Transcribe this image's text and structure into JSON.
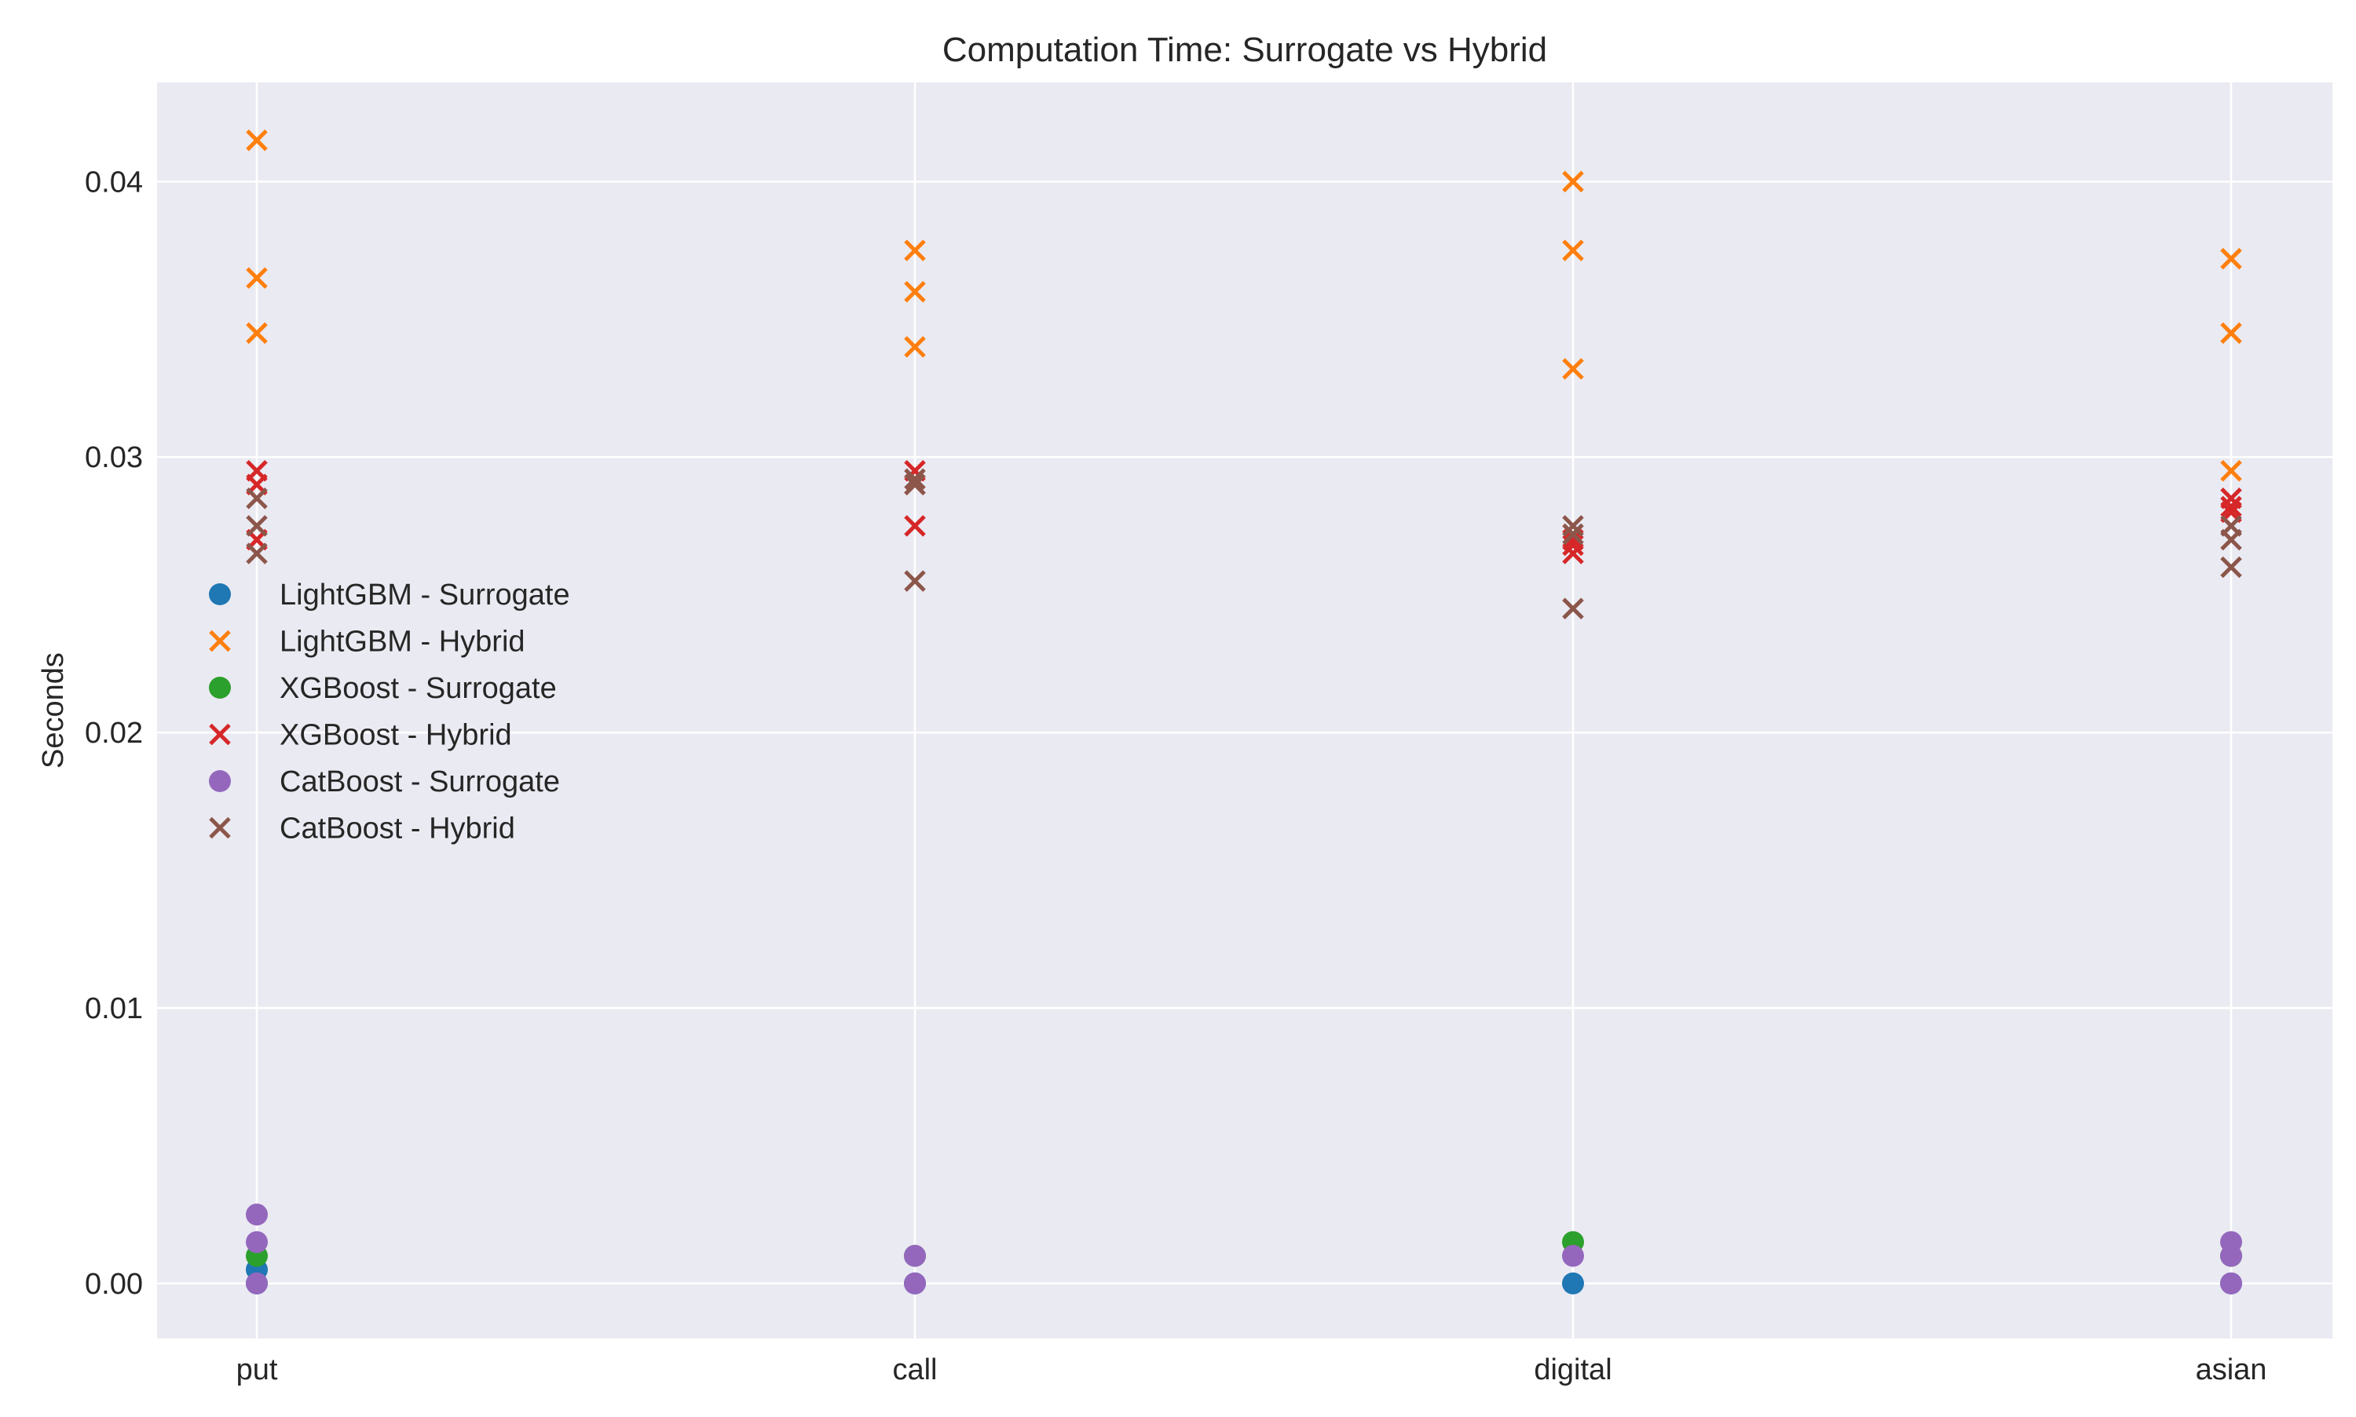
{
  "chart_data": {
    "type": "scatter",
    "title": "Computation Time: Surrogate vs Hybrid",
    "xlabel": "",
    "ylabel": "Seconds",
    "categories": [
      "put",
      "call",
      "digital",
      "asian"
    ],
    "ylim": [
      -0.002,
      0.0436
    ],
    "yticks": [
      "0.00",
      "0.01",
      "0.02",
      "0.03",
      "0.04"
    ],
    "grid": true,
    "legend_position": "center-left",
    "series": [
      {
        "name": "LightGBM - Surrogate",
        "marker": "circle",
        "color": "#1f77b4",
        "points": [
          {
            "x": "put",
            "y": 0.0005
          },
          {
            "x": "put",
            "y": 0.0
          },
          {
            "x": "call",
            "y": 0.0
          },
          {
            "x": "digital",
            "y": 0.0
          },
          {
            "x": "asian",
            "y": 0.0
          }
        ]
      },
      {
        "name": "LightGBM - Hybrid",
        "marker": "x",
        "color": "#ff7f0e",
        "points": [
          {
            "x": "put",
            "y": 0.0415
          },
          {
            "x": "put",
            "y": 0.0365
          },
          {
            "x": "put",
            "y": 0.0345
          },
          {
            "x": "call",
            "y": 0.0375
          },
          {
            "x": "call",
            "y": 0.036
          },
          {
            "x": "call",
            "y": 0.034
          },
          {
            "x": "digital",
            "y": 0.04
          },
          {
            "x": "digital",
            "y": 0.0375
          },
          {
            "x": "digital",
            "y": 0.0332
          },
          {
            "x": "asian",
            "y": 0.0372
          },
          {
            "x": "asian",
            "y": 0.0345
          },
          {
            "x": "asian",
            "y": 0.0295
          }
        ]
      },
      {
        "name": "XGBoost - Surrogate",
        "marker": "circle",
        "color": "#2ca02c",
        "points": [
          {
            "x": "put",
            "y": 0.001
          },
          {
            "x": "call",
            "y": 0.001
          },
          {
            "x": "digital",
            "y": 0.0015
          },
          {
            "x": "asian",
            "y": 0.001
          }
        ]
      },
      {
        "name": "XGBoost - Hybrid",
        "marker": "x",
        "color": "#d62728",
        "points": [
          {
            "x": "put",
            "y": 0.0295
          },
          {
            "x": "put",
            "y": 0.029
          },
          {
            "x": "put",
            "y": 0.027
          },
          {
            "x": "call",
            "y": 0.0295
          },
          {
            "x": "call",
            "y": 0.029
          },
          {
            "x": "call",
            "y": 0.0275
          },
          {
            "x": "digital",
            "y": 0.027
          },
          {
            "x": "digital",
            "y": 0.0268
          },
          {
            "x": "digital",
            "y": 0.0265
          },
          {
            "x": "asian",
            "y": 0.0285
          },
          {
            "x": "asian",
            "y": 0.0282
          },
          {
            "x": "asian",
            "y": 0.028
          }
        ]
      },
      {
        "name": "CatBoost - Surrogate",
        "marker": "circle",
        "color": "#9467bd",
        "points": [
          {
            "x": "put",
            "y": 0.0025
          },
          {
            "x": "put",
            "y": 0.0015
          },
          {
            "x": "put",
            "y": 0.0
          },
          {
            "x": "call",
            "y": 0.001
          },
          {
            "x": "call",
            "y": 0.0
          },
          {
            "x": "digital",
            "y": 0.001
          },
          {
            "x": "asian",
            "y": 0.0015
          },
          {
            "x": "asian",
            "y": 0.001
          },
          {
            "x": "asian",
            "y": 0.0
          }
        ]
      },
      {
        "name": "CatBoost - Hybrid",
        "marker": "x",
        "color": "#8c564b",
        "points": [
          {
            "x": "put",
            "y": 0.0285
          },
          {
            "x": "put",
            "y": 0.0275
          },
          {
            "x": "put",
            "y": 0.0265
          },
          {
            "x": "call",
            "y": 0.0292
          },
          {
            "x": "call",
            "y": 0.029
          },
          {
            "x": "call",
            "y": 0.0255
          },
          {
            "x": "digital",
            "y": 0.0275
          },
          {
            "x": "digital",
            "y": 0.0272
          },
          {
            "x": "digital",
            "y": 0.0245
          },
          {
            "x": "asian",
            "y": 0.0275
          },
          {
            "x": "asian",
            "y": 0.027
          },
          {
            "x": "asian",
            "y": 0.026
          }
        ]
      }
    ]
  }
}
